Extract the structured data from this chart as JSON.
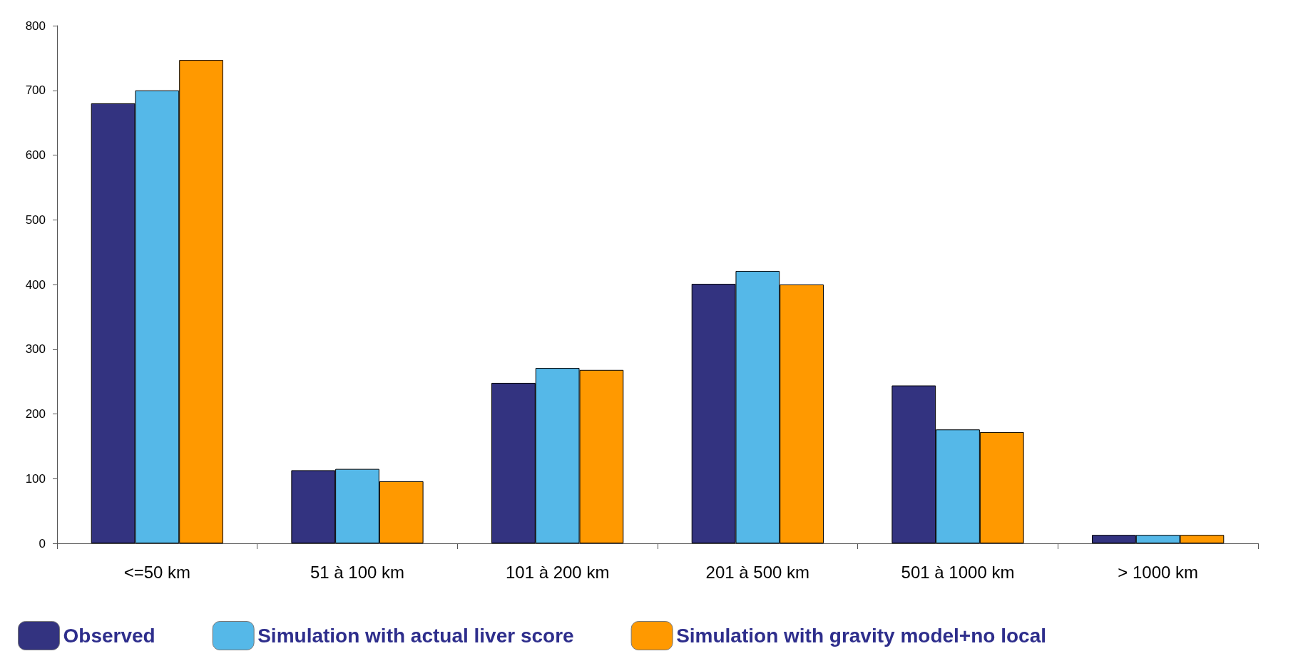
{
  "chart_data": {
    "type": "bar",
    "categories": [
      "<=50 km",
      "51 à 100 km",
      "101 à 200 km",
      "201 à 500 km",
      "501 à 1000 km",
      "> 1000 km"
    ],
    "series": [
      {
        "name": "Observed",
        "color": "#333380",
        "values": [
          680,
          113,
          248,
          401,
          244,
          13
        ]
      },
      {
        "name": "Simulation with actual liver score",
        "color": "#55b8e8",
        "values": [
          700,
          115,
          271,
          421,
          176,
          13
        ]
      },
      {
        "name": "Simulation with gravity model+no local",
        "color": "#ff9900",
        "values": [
          747,
          96,
          268,
          400,
          172,
          13
        ]
      }
    ],
    "ylim": [
      0,
      800
    ],
    "yticks": [
      0,
      100,
      200,
      300,
      400,
      500,
      600,
      700,
      800
    ],
    "grid": false,
    "legend": "bottom"
  }
}
